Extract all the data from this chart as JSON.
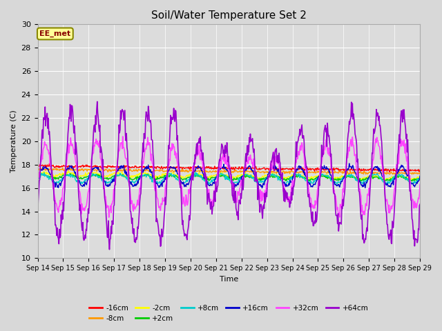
{
  "title": "Soil/Water Temperature Set 2",
  "xlabel": "Time",
  "ylabel": "Temperature (C)",
  "annotation": "EE_met",
  "ylim": [
    10,
    30
  ],
  "xlim": [
    0,
    15
  ],
  "figsize": [
    6.4,
    4.8
  ],
  "dpi": 100,
  "bg_color": "#d8d8d8",
  "colors": {
    "-16cm": "#ff0000",
    "-8cm": "#ff9900",
    "-2cm": "#ffff00",
    "+2cm": "#00cc00",
    "+8cm": "#00cccc",
    "+16cm": "#0000cc",
    "+32cm": "#ff44ff",
    "+64cm": "#9900cc"
  },
  "xtick_labels": [
    "Sep 14",
    "Sep 15",
    "Sep 16",
    "Sep 17",
    "Sep 18",
    "Sep 19",
    "Sep 20",
    "Sep 21",
    "Sep 22",
    "Sep 23",
    "Sep 24",
    "Sep 25",
    "Sep 26",
    "Sep 27",
    "Sep 28",
    "Sep 29"
  ],
  "ytick_values": [
    10,
    12,
    14,
    16,
    18,
    20,
    22,
    24,
    26,
    28,
    30
  ]
}
